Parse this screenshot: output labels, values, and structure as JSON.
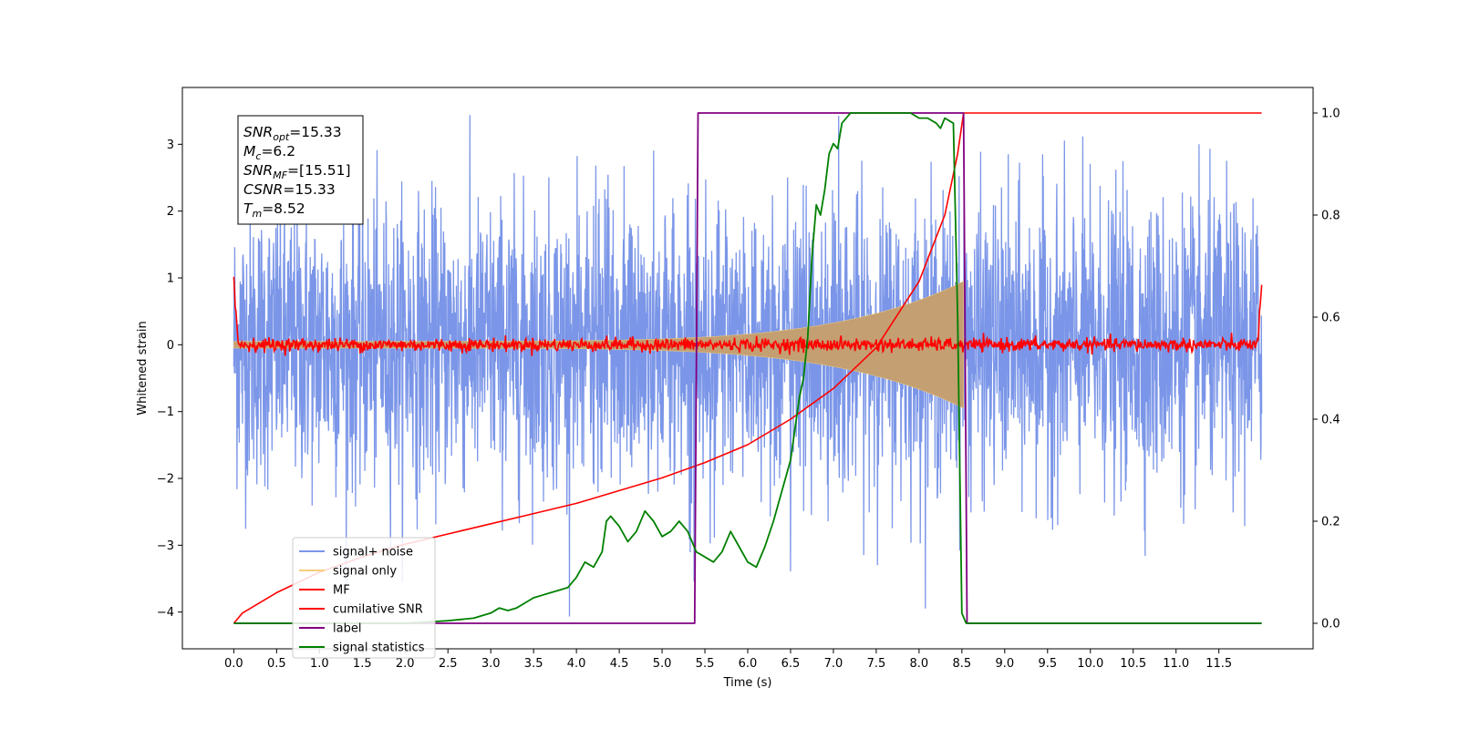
{
  "chart_data": {
    "type": "line",
    "title": "",
    "xlabel": "Time (s)",
    "ylabel": "Whitened strain",
    "xlim": [
      -0.6,
      12.6
    ],
    "ylim": [
      -4.55,
      3.85
    ],
    "ylim_right": [
      -0.05,
      1.05
    ],
    "x_ticks": [
      0.0,
      0.5,
      1.0,
      1.5,
      2.0,
      2.5,
      3.0,
      3.5,
      4.0,
      4.5,
      5.0,
      5.5,
      6.0,
      6.5,
      7.0,
      7.5,
      8.0,
      8.5,
      9.0,
      9.5,
      10.0,
      10.5,
      11.0,
      11.5
    ],
    "x_tick_labels": [
      "0.0",
      "0.5",
      "1.0",
      "1.5",
      "2.0",
      "2.5",
      "3.0",
      "3.5",
      "4.0",
      "4.5",
      "5.0",
      "5.5",
      "6.0",
      "6.5",
      "7.0",
      "7.5",
      "8.0",
      "8.5",
      "9.0",
      "9.5",
      "10.0",
      "10.5",
      "11.0",
      "11.5"
    ],
    "y_ticks": [
      3,
      2,
      1,
      0,
      -1,
      -2,
      -3,
      -4
    ],
    "y_tick_labels": [
      "3",
      "2",
      "1",
      "0",
      "−1",
      "−2",
      "−3",
      "−4"
    ],
    "y_right_ticks": [
      1.0,
      0.8,
      0.6,
      0.4,
      0.2,
      0.0
    ],
    "y_right_tick_labels": [
      "1.0",
      "0.8",
      "0.6",
      "0.4",
      "0.2",
      "0.0"
    ],
    "grid": false,
    "legend_position": "lower-left",
    "colors": {
      "signal_noise": "#7b96e8",
      "signal_only": "#f5cd78",
      "signal_fill": "#c49f72",
      "mf": "#ff0000",
      "csnr": "#ff0000",
      "label": "#800080",
      "stats": "#008000"
    },
    "series": [
      {
        "key": "signal_noise",
        "name": "signal+ noise",
        "axis": "left",
        "t_range": [
          0.0,
          12.0
        ],
        "amplitude_range": [
          -4.15,
          3.5
        ],
        "note": "dense noise"
      },
      {
        "key": "signal_only",
        "name": "signal only",
        "axis": "left",
        "t_range": [
          0.0,
          8.52
        ],
        "envelope_at_end": 0.95
      },
      {
        "key": "mf",
        "name": "MF",
        "axis": "left",
        "t_range": [
          0.0,
          12.0
        ]
      },
      {
        "key": "csnr",
        "name": "cumilative SNR",
        "axis": "right",
        "x": [
          0,
          0.1,
          0.5,
          1,
          1.5,
          2,
          2.5,
          3,
          3.5,
          4,
          4.5,
          5,
          5.5,
          6,
          6.5,
          7,
          7.5,
          8,
          8.3,
          8.45,
          8.52,
          9,
          10,
          11,
          12
        ],
        "y": [
          0,
          0.02,
          0.06,
          0.1,
          0.13,
          0.155,
          0.175,
          0.195,
          0.215,
          0.235,
          0.26,
          0.285,
          0.315,
          0.35,
          0.4,
          0.46,
          0.54,
          0.67,
          0.8,
          0.92,
          1.0,
          1.0,
          1.0,
          1.0,
          1.0
        ]
      },
      {
        "key": "label",
        "name": "label",
        "axis": "right",
        "x": [
          0,
          5.38,
          5.42,
          8.52,
          8.56,
          12
        ],
        "y": [
          0,
          0,
          1,
          1,
          0,
          0
        ]
      },
      {
        "key": "stats",
        "name": "signal statistics",
        "axis": "right",
        "x": [
          0,
          0.5,
          1,
          1.5,
          2,
          2.5,
          2.8,
          3.0,
          3.1,
          3.2,
          3.3,
          3.4,
          3.5,
          3.6,
          3.7,
          3.8,
          3.9,
          4.0,
          4.1,
          4.2,
          4.3,
          4.35,
          4.4,
          4.45,
          4.5,
          4.6,
          4.7,
          4.8,
          4.9,
          5.0,
          5.1,
          5.2,
          5.3,
          5.4,
          5.5,
          5.6,
          5.7,
          5.8,
          5.9,
          6.0,
          6.1,
          6.2,
          6.3,
          6.4,
          6.5,
          6.55,
          6.6,
          6.65,
          6.7,
          6.75,
          6.8,
          6.85,
          6.9,
          6.95,
          7.0,
          7.05,
          7.1,
          7.2,
          7.3,
          7.4,
          7.5,
          7.6,
          7.7,
          7.8,
          7.9,
          8.0,
          8.1,
          8.2,
          8.25,
          8.3,
          8.4,
          8.45,
          8.5,
          8.55,
          8.6,
          9,
          10,
          11,
          12
        ],
        "y": [
          0,
          0,
          0,
          0,
          0,
          0.005,
          0.01,
          0.02,
          0.03,
          0.025,
          0.03,
          0.04,
          0.05,
          0.055,
          0.06,
          0.065,
          0.07,
          0.09,
          0.12,
          0.11,
          0.14,
          0.2,
          0.21,
          0.2,
          0.19,
          0.16,
          0.18,
          0.22,
          0.2,
          0.17,
          0.18,
          0.2,
          0.18,
          0.14,
          0.13,
          0.12,
          0.14,
          0.18,
          0.15,
          0.12,
          0.11,
          0.15,
          0.2,
          0.26,
          0.32,
          0.38,
          0.44,
          0.48,
          0.56,
          0.72,
          0.82,
          0.8,
          0.85,
          0.92,
          0.94,
          0.93,
          0.98,
          1.0,
          1.0,
          1.0,
          1.0,
          1.0,
          1.0,
          1.0,
          1.0,
          0.99,
          0.99,
          0.98,
          0.97,
          0.99,
          0.98,
          0.6,
          0.02,
          0.0,
          0.0,
          0.0,
          0.0,
          0.0,
          0.0
        ]
      }
    ],
    "annotation_lines": [
      {
        "var": "SNR",
        "sub": "opt",
        "value": "=15.33"
      },
      {
        "var": "M",
        "sub": "c",
        "value": "=6.2"
      },
      {
        "var": "SNR",
        "sub": "MF",
        "value": "=[15.51]"
      },
      {
        "var": "CSNR",
        "sub": "",
        "value": "=15.33"
      },
      {
        "var": "T",
        "sub": "m",
        "value": "=8.52"
      }
    ]
  }
}
